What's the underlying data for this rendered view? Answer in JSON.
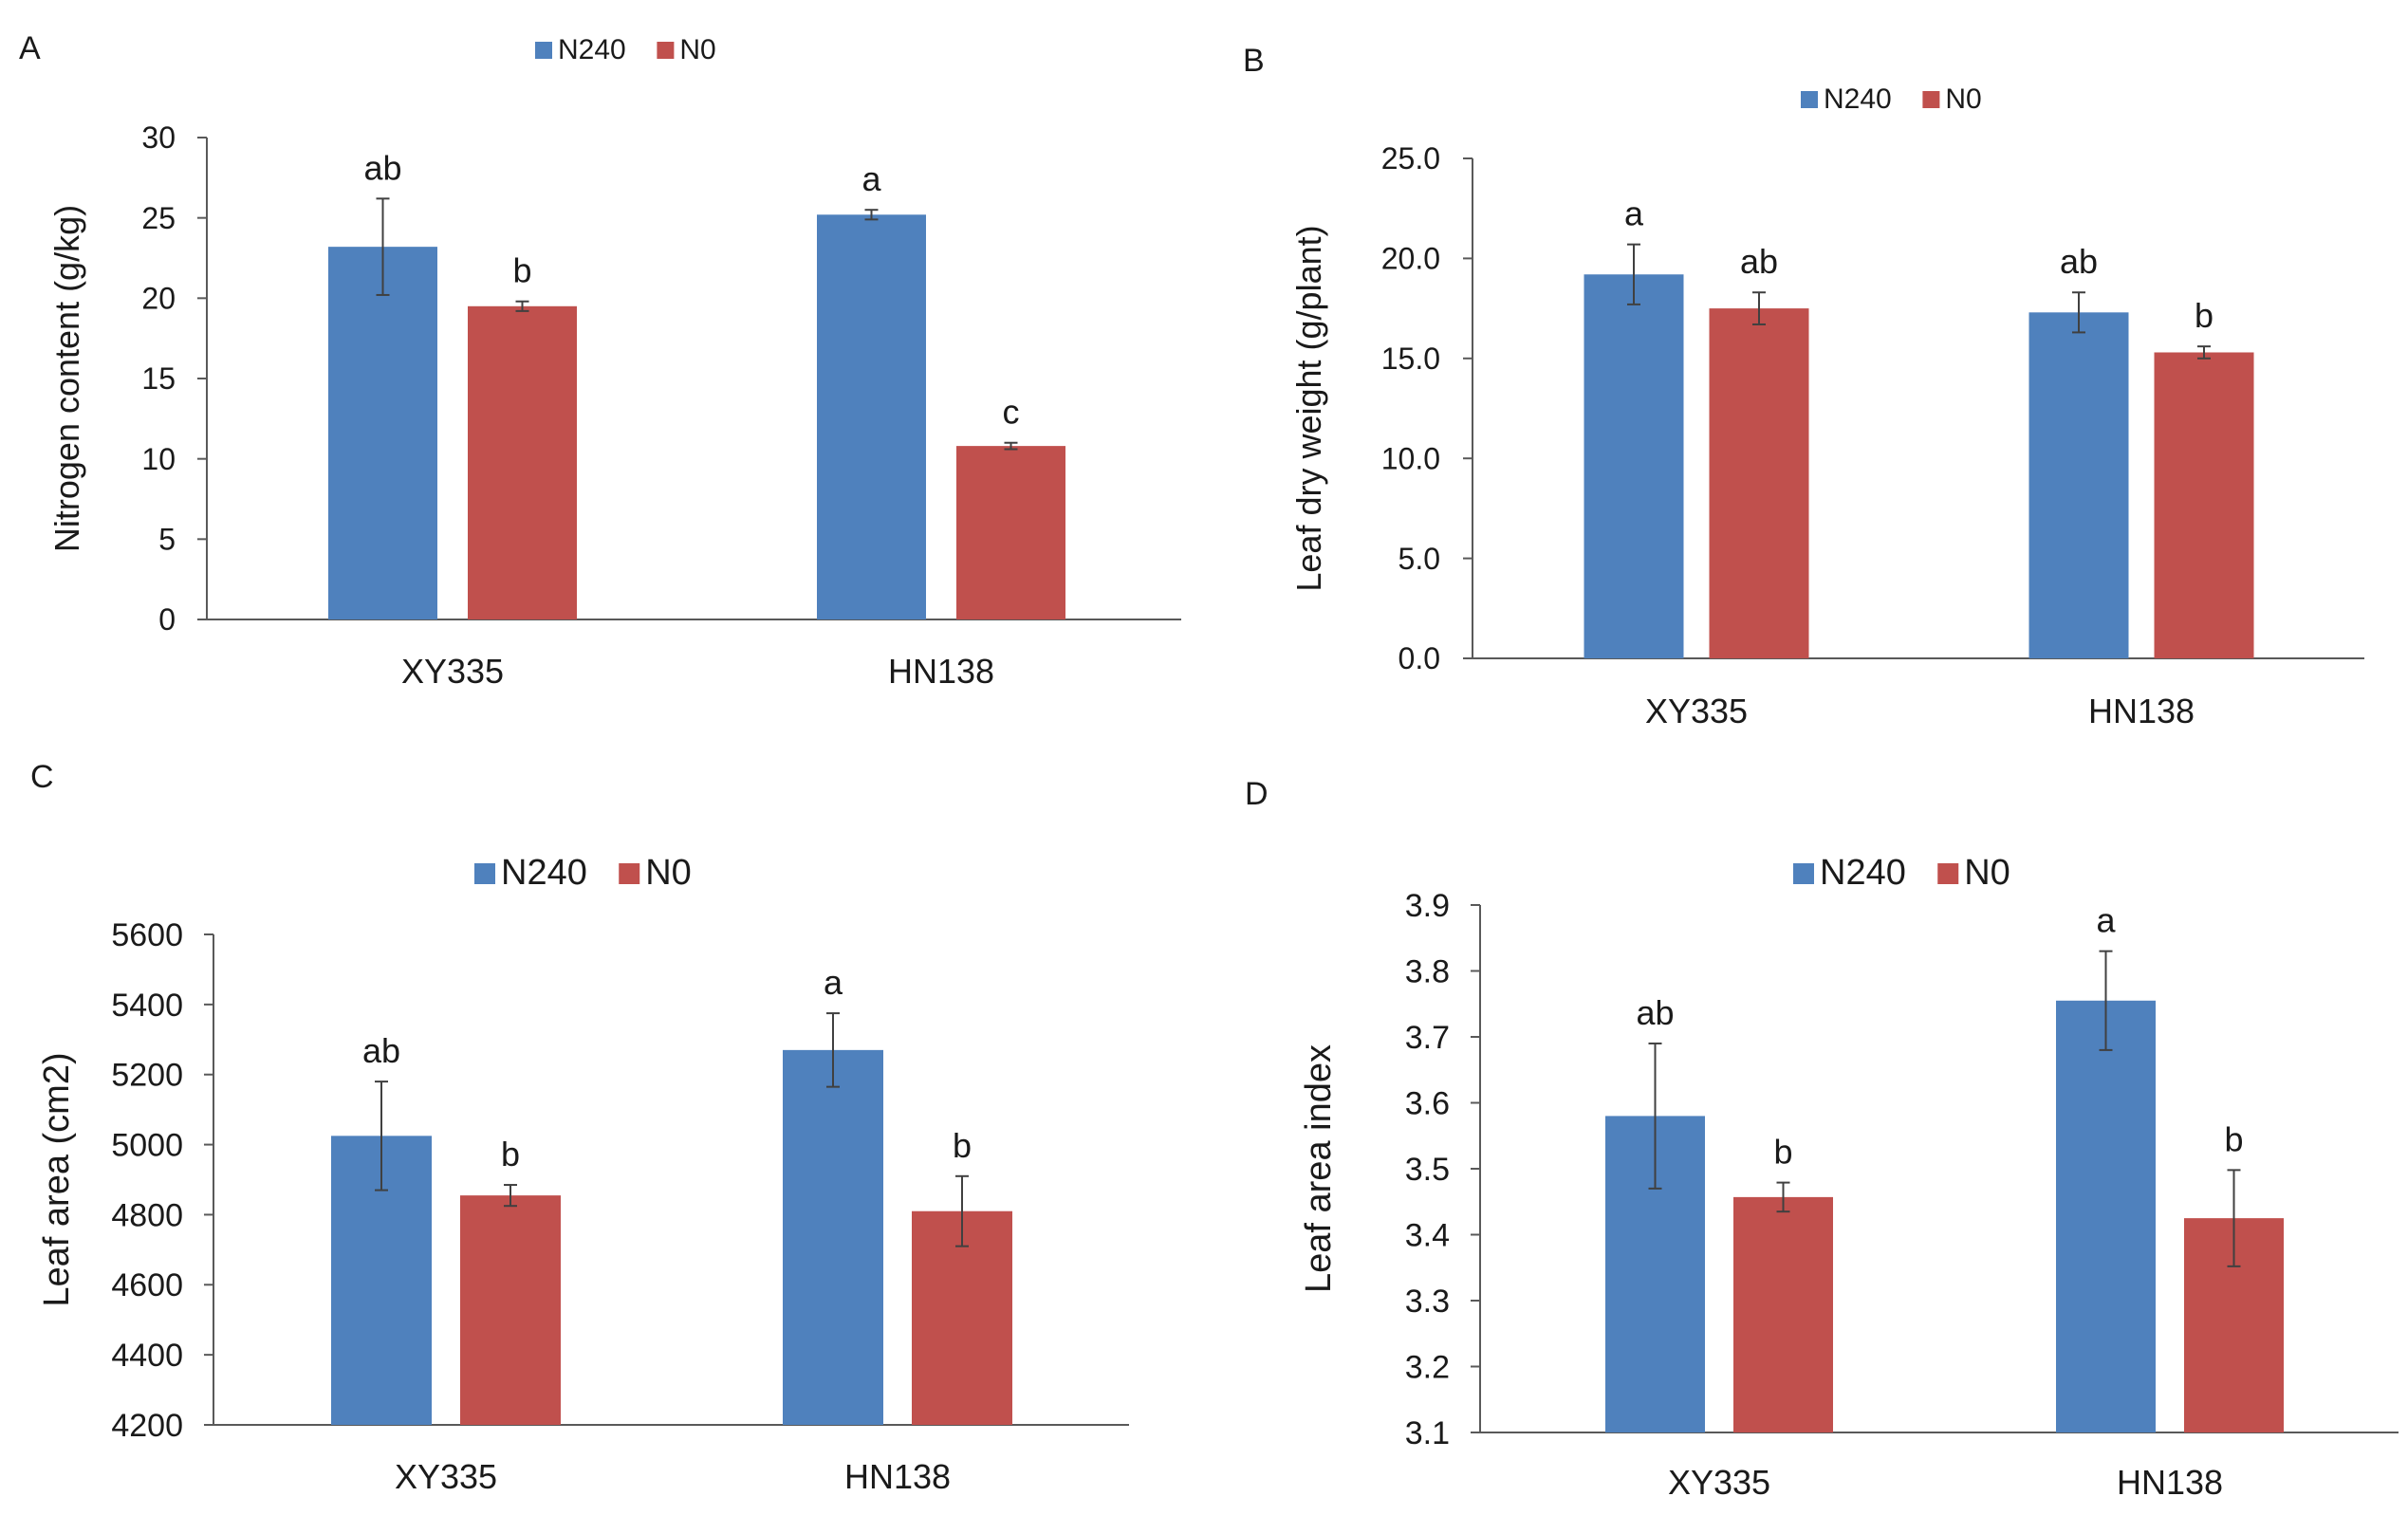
{
  "colors": {
    "n240": "#4f81bd",
    "n0": "#c0504d",
    "axis": "#595959",
    "text": "#1a1a1a"
  },
  "chart_data": [
    {
      "panel": "A",
      "type": "bar",
      "title": "",
      "xlabel": "",
      "ylabel": "Nitrogen content (g/kg)",
      "ylim": [
        0,
        30
      ],
      "yticks": [
        "0",
        "5",
        "10",
        "15",
        "20",
        "25",
        "30"
      ],
      "categories": [
        "XY335",
        "HN138"
      ],
      "legend": {
        "position": "top-center",
        "entries": [
          "N240",
          "N0"
        ]
      },
      "series": [
        {
          "name": "N240",
          "values": [
            23.2,
            25.2
          ],
          "errors": [
            3.0,
            0.3
          ],
          "labels": [
            "ab",
            "a"
          ]
        },
        {
          "name": "N0",
          "values": [
            19.5,
            10.8
          ],
          "errors": [
            0.3,
            0.2
          ],
          "labels": [
            "b",
            "c"
          ]
        }
      ]
    },
    {
      "panel": "B",
      "type": "bar",
      "title": "",
      "xlabel": "",
      "ylabel": "Leaf dry weight (g/plant)",
      "ylim": [
        0,
        25
      ],
      "yticks": [
        "0.0",
        "5.0",
        "10.0",
        "15.0",
        "20.0",
        "25.0"
      ],
      "categories": [
        "XY335",
        "HN138"
      ],
      "legend": {
        "position": "top-center",
        "entries": [
          "N240",
          "N0"
        ]
      },
      "series": [
        {
          "name": "N240",
          "values": [
            19.2,
            17.3
          ],
          "errors": [
            1.5,
            1.0
          ],
          "labels": [
            "a",
            "ab"
          ]
        },
        {
          "name": "N0",
          "values": [
            17.5,
            15.3
          ],
          "errors": [
            0.8,
            0.3
          ],
          "labels": [
            "ab",
            "b"
          ]
        }
      ]
    },
    {
      "panel": "C",
      "type": "bar",
      "title": "",
      "xlabel": "",
      "ylabel": "Leaf area (cm2)",
      "ylim": [
        4200,
        5600
      ],
      "yticks": [
        "4200",
        "4400",
        "4600",
        "4800",
        "5000",
        "5200",
        "5400",
        "5600"
      ],
      "categories": [
        "XY335",
        "HN138"
      ],
      "legend": {
        "position": "top-center",
        "entries": [
          "N240",
          "N0"
        ]
      },
      "series": [
        {
          "name": "N240",
          "values": [
            5025,
            5270
          ],
          "errors": [
            155,
            105
          ],
          "labels": [
            "ab",
            "a"
          ]
        },
        {
          "name": "N0",
          "values": [
            4855,
            4810
          ],
          "errors": [
            30,
            100
          ],
          "labels": [
            "b",
            "b"
          ]
        }
      ]
    },
    {
      "panel": "D",
      "type": "bar",
      "title": "",
      "xlabel": "",
      "ylabel": "Leaf area index",
      "ylim": [
        3.1,
        3.9
      ],
      "yticks": [
        "3.1",
        "3.2",
        "3.3",
        "3.4",
        "3.5",
        "3.6",
        "3.7",
        "3.8",
        "3.9"
      ],
      "categories": [
        "XY335",
        "HN138"
      ],
      "legend": {
        "position": "top-center",
        "entries": [
          "N240",
          "N0"
        ]
      },
      "series": [
        {
          "name": "N240",
          "values": [
            3.58,
            3.755
          ],
          "errors": [
            0.11,
            0.075
          ],
          "labels": [
            "ab",
            "a"
          ]
        },
        {
          "name": "N0",
          "values": [
            3.457,
            3.425
          ],
          "errors": [
            0.022,
            0.073
          ],
          "labels": [
            "b",
            "b"
          ]
        }
      ]
    }
  ]
}
